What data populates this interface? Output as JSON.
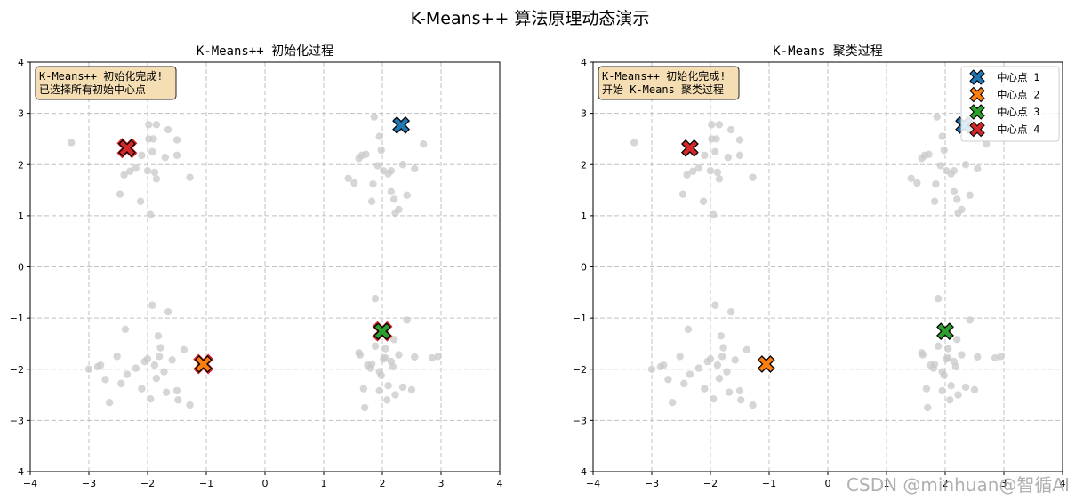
{
  "figure": {
    "title": "K-Means++ 算法原理动态演示",
    "watermark": "CSDN @minhuan@智循AI"
  },
  "colors": {
    "point": "#c8c8c8",
    "grid": "#c0c0c0",
    "info_box_fill": "#f5deb3",
    "centroids": [
      "#1f77b4",
      "#ff7f0e",
      "#2ca02c",
      "#d62728"
    ],
    "highlight_edge": "#d62728"
  },
  "chart_data": [
    {
      "type": "scatter",
      "title": "K-Means++ 初始化过程",
      "xlim": [
        -4,
        4
      ],
      "ylim": [
        -4,
        4
      ],
      "xticks": [
        -4,
        -3,
        -2,
        -1,
        0,
        1,
        2,
        3,
        4
      ],
      "yticks": [
        -4,
        -3,
        -2,
        -1,
        0,
        1,
        2,
        3,
        4
      ],
      "grid": true,
      "info_text": [
        "K-Means++ 初始化完成!",
        "已选择所有初始中心点"
      ],
      "legend": null,
      "data_points": [
        [
          -3.3,
          2.43
        ],
        [
          -2.47,
          1.42
        ],
        [
          -2.4,
          1.8
        ],
        [
          -2.35,
          2.3
        ],
        [
          -2.3,
          1.87
        ],
        [
          -2.2,
          1.93
        ],
        [
          -2.12,
          1.28
        ],
        [
          -2.1,
          2.18
        ],
        [
          -2.0,
          1.88
        ],
        [
          -1.98,
          2.5
        ],
        [
          -1.98,
          2.78
        ],
        [
          -1.95,
          1.02
        ],
        [
          -1.92,
          2.25
        ],
        [
          -1.9,
          2.5
        ],
        [
          -1.88,
          1.85
        ],
        [
          -1.85,
          1.72
        ],
        [
          -1.85,
          2.78
        ],
        [
          -1.7,
          2.14
        ],
        [
          -1.65,
          2.68
        ],
        [
          -1.5,
          2.48
        ],
        [
          -1.5,
          2.18
        ],
        [
          -1.28,
          1.75
        ],
        [
          1.42,
          1.73
        ],
        [
          1.52,
          1.64
        ],
        [
          1.6,
          2.12
        ],
        [
          1.65,
          2.18
        ],
        [
          1.72,
          2.2
        ],
        [
          1.82,
          1.28
        ],
        [
          1.84,
          1.62
        ],
        [
          1.92,
          1.98
        ],
        [
          1.95,
          2.55
        ],
        [
          1.98,
          2.28
        ],
        [
          2.02,
          1.88
        ],
        [
          2.1,
          1.82
        ],
        [
          2.15,
          1.47
        ],
        [
          2.15,
          1.88
        ],
        [
          2.2,
          1.32
        ],
        [
          2.22,
          1.05
        ],
        [
          2.24,
          2.85
        ],
        [
          2.28,
          1.12
        ],
        [
          2.35,
          2.0
        ],
        [
          2.42,
          1.4
        ],
        [
          2.55,
          1.92
        ],
        [
          2.7,
          2.4
        ],
        [
          1.86,
          2.93
        ],
        [
          -3.0,
          -2.0
        ],
        [
          -2.85,
          -1.95
        ],
        [
          -2.8,
          -1.92
        ],
        [
          -2.72,
          -2.2
        ],
        [
          -2.65,
          -2.65
        ],
        [
          -2.52,
          -1.75
        ],
        [
          -2.45,
          -2.28
        ],
        [
          -2.38,
          -1.22
        ],
        [
          -2.35,
          -2.1
        ],
        [
          -2.2,
          -1.98
        ],
        [
          -2.1,
          -2.38
        ],
        [
          -2.05,
          -1.85
        ],
        [
          -2.0,
          -1.8
        ],
        [
          -1.95,
          -2.58
        ],
        [
          -1.92,
          -0.75
        ],
        [
          -1.88,
          -1.92
        ],
        [
          -1.85,
          -2.18
        ],
        [
          -1.82,
          -1.35
        ],
        [
          -1.8,
          -1.75
        ],
        [
          -1.78,
          -1.58
        ],
        [
          -1.72,
          -2.05
        ],
        [
          -1.68,
          -2.45
        ],
        [
          -1.65,
          -0.88
        ],
        [
          -1.58,
          -1.82
        ],
        [
          -1.5,
          -2.42
        ],
        [
          -1.48,
          -2.6
        ],
        [
          -1.38,
          -1.62
        ],
        [
          -1.28,
          -2.7
        ],
        [
          1.6,
          -1.68
        ],
        [
          1.62,
          -1.72
        ],
        [
          1.68,
          -2.38
        ],
        [
          1.7,
          -2.75
        ],
        [
          1.75,
          -1.92
        ],
        [
          1.82,
          -1.9
        ],
        [
          1.88,
          -1.55
        ],
        [
          1.95,
          -2.42
        ],
        [
          1.95,
          -2.05
        ],
        [
          1.98,
          -2.12
        ],
        [
          2.02,
          -1.8
        ],
        [
          2.05,
          -1.78
        ],
        [
          2.08,
          -2.6
        ],
        [
          2.1,
          -2.32
        ],
        [
          2.15,
          -1.85
        ],
        [
          2.2,
          -1.42
        ],
        [
          2.22,
          -2.5
        ],
        [
          2.28,
          -1.72
        ],
        [
          2.35,
          -2.35
        ],
        [
          2.42,
          -1.04
        ],
        [
          2.5,
          -2.4
        ],
        [
          2.85,
          -1.78
        ],
        [
          1.8,
          -1.98
        ],
        [
          2.05,
          -1.6
        ],
        [
          2.18,
          -1.95
        ],
        [
          1.88,
          -0.62
        ],
        [
          2.55,
          -1.76
        ],
        [
          2.95,
          -1.75
        ]
      ],
      "centroids": [
        {
          "x": 2.32,
          "y": 2.77,
          "highlight": false
        },
        {
          "x": -1.05,
          "y": -1.9,
          "highlight": true
        },
        {
          "x": 2.0,
          "y": -1.26,
          "highlight": true
        },
        {
          "x": -2.35,
          "y": 2.32,
          "highlight": true
        }
      ]
    },
    {
      "type": "scatter",
      "title": "K-Means 聚类过程",
      "xlim": [
        -4,
        4
      ],
      "ylim": [
        -4,
        4
      ],
      "xticks": [
        -4,
        -3,
        -2,
        -1,
        0,
        1,
        2,
        3,
        4
      ],
      "yticks": [
        -4,
        -3,
        -2,
        -1,
        0,
        1,
        2,
        3,
        4
      ],
      "grid": true,
      "info_text": [
        "K-Means++ 初始化完成!",
        "开始 K-Means 聚类过程"
      ],
      "legend": {
        "position": "top-right",
        "entries": [
          "中心点 1",
          "中心点 2",
          "中心点 3",
          "中心点 4"
        ]
      },
      "data_points": [
        [
          -3.3,
          2.43
        ],
        [
          -2.47,
          1.42
        ],
        [
          -2.4,
          1.8
        ],
        [
          -2.35,
          2.3
        ],
        [
          -2.3,
          1.87
        ],
        [
          -2.2,
          1.93
        ],
        [
          -2.12,
          1.28
        ],
        [
          -2.1,
          2.18
        ],
        [
          -2.0,
          1.88
        ],
        [
          -1.98,
          2.5
        ],
        [
          -1.98,
          2.78
        ],
        [
          -1.95,
          1.02
        ],
        [
          -1.92,
          2.25
        ],
        [
          -1.9,
          2.5
        ],
        [
          -1.88,
          1.85
        ],
        [
          -1.85,
          1.72
        ],
        [
          -1.85,
          2.78
        ],
        [
          -1.7,
          2.14
        ],
        [
          -1.65,
          2.68
        ],
        [
          -1.5,
          2.48
        ],
        [
          -1.5,
          2.18
        ],
        [
          -1.28,
          1.75
        ],
        [
          1.42,
          1.73
        ],
        [
          1.52,
          1.64
        ],
        [
          1.6,
          2.12
        ],
        [
          1.65,
          2.18
        ],
        [
          1.72,
          2.2
        ],
        [
          1.82,
          1.28
        ],
        [
          1.84,
          1.62
        ],
        [
          1.92,
          1.98
        ],
        [
          1.95,
          2.55
        ],
        [
          1.98,
          2.28
        ],
        [
          2.02,
          1.88
        ],
        [
          2.1,
          1.82
        ],
        [
          2.15,
          1.47
        ],
        [
          2.15,
          1.88
        ],
        [
          2.2,
          1.32
        ],
        [
          2.22,
          1.05
        ],
        [
          2.24,
          2.85
        ],
        [
          2.28,
          1.12
        ],
        [
          2.35,
          2.0
        ],
        [
          2.42,
          1.4
        ],
        [
          2.55,
          1.92
        ],
        [
          2.7,
          2.4
        ],
        [
          1.86,
          2.93
        ],
        [
          -3.0,
          -2.0
        ],
        [
          -2.85,
          -1.95
        ],
        [
          -2.8,
          -1.92
        ],
        [
          -2.72,
          -2.2
        ],
        [
          -2.65,
          -2.65
        ],
        [
          -2.52,
          -1.75
        ],
        [
          -2.45,
          -2.28
        ],
        [
          -2.38,
          -1.22
        ],
        [
          -2.35,
          -2.1
        ],
        [
          -2.2,
          -1.98
        ],
        [
          -2.1,
          -2.38
        ],
        [
          -2.05,
          -1.85
        ],
        [
          -2.0,
          -1.8
        ],
        [
          -1.95,
          -2.58
        ],
        [
          -1.92,
          -0.75
        ],
        [
          -1.88,
          -1.92
        ],
        [
          -1.85,
          -2.18
        ],
        [
          -1.82,
          -1.35
        ],
        [
          -1.8,
          -1.75
        ],
        [
          -1.78,
          -1.58
        ],
        [
          -1.72,
          -2.05
        ],
        [
          -1.68,
          -2.45
        ],
        [
          -1.65,
          -0.88
        ],
        [
          -1.58,
          -1.82
        ],
        [
          -1.5,
          -2.42
        ],
        [
          -1.48,
          -2.6
        ],
        [
          -1.38,
          -1.62
        ],
        [
          -1.28,
          -2.7
        ],
        [
          1.6,
          -1.68
        ],
        [
          1.62,
          -1.72
        ],
        [
          1.68,
          -2.38
        ],
        [
          1.7,
          -2.75
        ],
        [
          1.75,
          -1.92
        ],
        [
          1.82,
          -1.9
        ],
        [
          1.88,
          -1.55
        ],
        [
          1.95,
          -2.42
        ],
        [
          1.95,
          -2.05
        ],
        [
          1.98,
          -2.12
        ],
        [
          2.02,
          -1.8
        ],
        [
          2.05,
          -1.78
        ],
        [
          2.08,
          -2.6
        ],
        [
          2.1,
          -2.32
        ],
        [
          2.15,
          -1.85
        ],
        [
          2.2,
          -1.42
        ],
        [
          2.22,
          -2.5
        ],
        [
          2.28,
          -1.72
        ],
        [
          2.35,
          -2.35
        ],
        [
          2.42,
          -1.04
        ],
        [
          2.5,
          -2.4
        ],
        [
          2.85,
          -1.78
        ],
        [
          1.8,
          -1.98
        ],
        [
          2.05,
          -1.6
        ],
        [
          2.18,
          -1.95
        ],
        [
          1.88,
          -0.62
        ],
        [
          2.55,
          -1.76
        ],
        [
          2.95,
          -1.75
        ]
      ],
      "centroids": [
        {
          "x": 2.32,
          "y": 2.77,
          "highlight": false
        },
        {
          "x": -1.05,
          "y": -1.9,
          "highlight": false
        },
        {
          "x": 2.0,
          "y": -1.26,
          "highlight": false
        },
        {
          "x": -2.35,
          "y": 2.32,
          "highlight": false
        }
      ]
    }
  ]
}
